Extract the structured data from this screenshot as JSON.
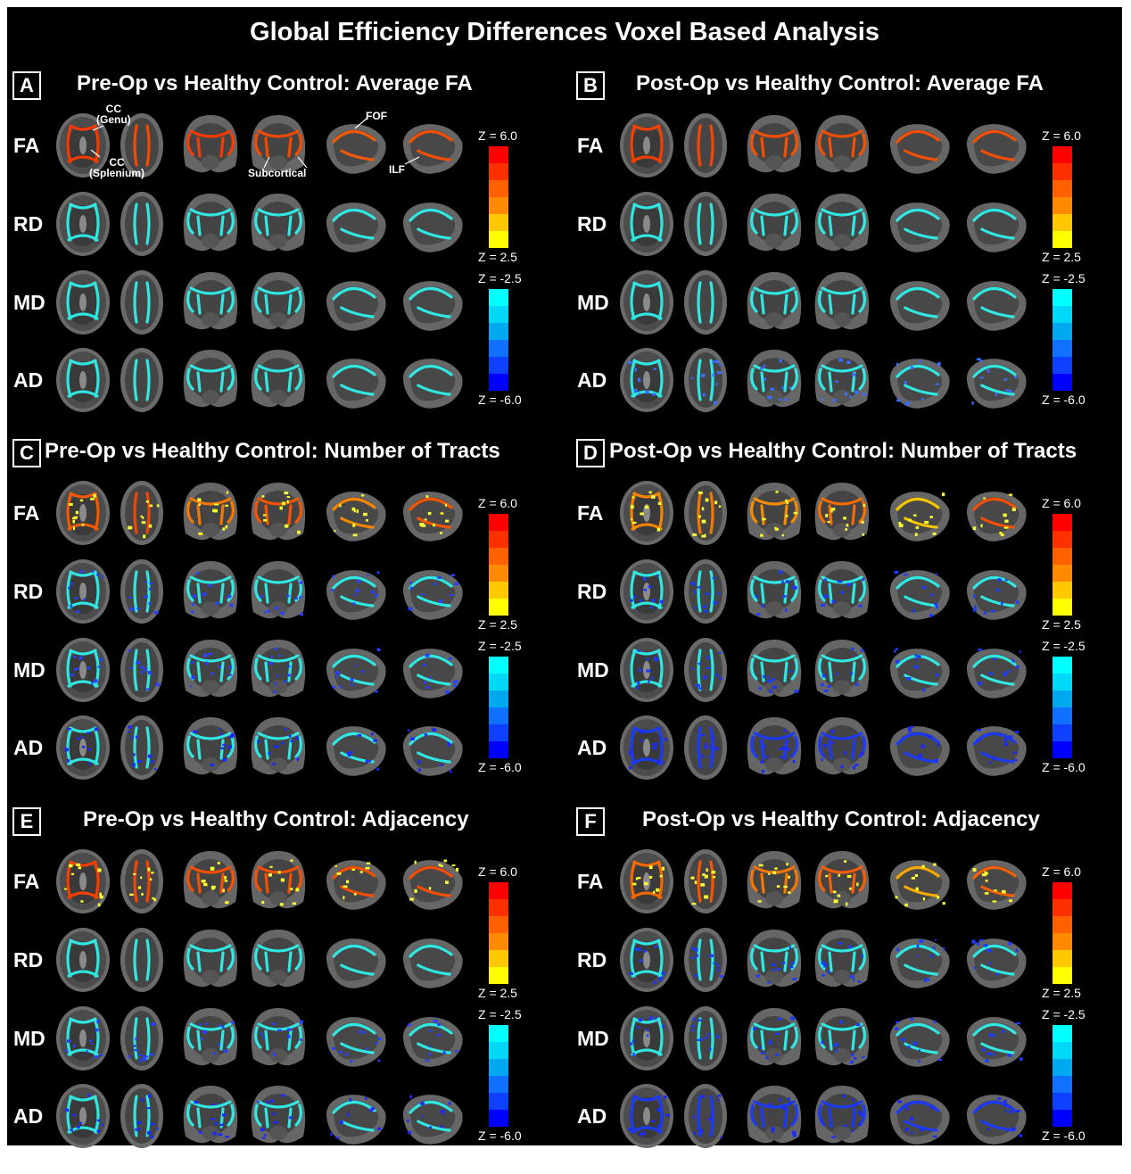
{
  "figure_title": "Global Efficiency Differences Voxel Based Analysis",
  "panels": [
    {
      "letter": "A",
      "title": "Pre-Op vs Healthy Control: Average FA",
      "fa_colors": [
        "#ff3b00",
        "#ff4a00",
        "#ff3b00",
        "#ff4a00",
        "#ff5a00",
        "#ff5000"
      ],
      "blue_colors": [
        [
          "#2ff0ea",
          "#2ff0ea"
        ],
        [
          "#2ff0ea",
          "#2ff0ea"
        ],
        [
          "#2ff0ea",
          "#2ff0ea"
        ]
      ]
    },
    {
      "letter": "B",
      "title": "Post-Op vs Healthy Control: Average FA",
      "fa_colors": [
        "#ff4000",
        "#ff4500",
        "#ff5000",
        "#ff5000",
        "#ff5000",
        "#ff5000"
      ],
      "blue_colors": [
        [
          "#2ff0ea",
          "#2ff0ea"
        ],
        [
          "#2ff0ea",
          "#2ff0ea"
        ],
        [
          "#2ff0ea",
          "#3b6cff"
        ]
      ]
    },
    {
      "letter": "C",
      "title": "Pre-Op vs Healthy Control: Number of Tracts",
      "fa_colors": [
        "#ff5a00",
        "#ff4500",
        "#ff7a00",
        "#ff5500",
        "#ff8a00",
        "#ff5500"
      ],
      "blue_colors": [
        [
          "#2ff0ea",
          "#2840ff"
        ],
        [
          "#2ff0ea",
          "#2840ff"
        ],
        [
          "#2ff0ea",
          "#1a2aff"
        ]
      ]
    },
    {
      "letter": "D",
      "title": "Post-Op vs Healthy Control: Number of Tracts",
      "fa_colors": [
        "#ff8a00",
        "#ff7a00",
        "#ff9000",
        "#ff7000",
        "#ffcc00",
        "#ff5000"
      ],
      "blue_colors": [
        [
          "#2ff0ea",
          "#1a3aff"
        ],
        [
          "#2ff0ea",
          "#1a3aff"
        ],
        [
          "#1a3aff",
          "#1a2aff"
        ]
      ]
    },
    {
      "letter": "E",
      "title": "Pre-Op vs Healthy Control: Adjacency",
      "fa_colors": [
        "#ff4000",
        "#ff4500",
        "#ff5000",
        "#ff5000",
        "#ff5000",
        "#ff5000"
      ],
      "blue_colors": [
        [
          "#2ff0ea",
          "#2ff0ea"
        ],
        [
          "#2ff0ea",
          "#2840ff"
        ],
        [
          "#2ff0ea",
          "#1a2aff"
        ]
      ]
    },
    {
      "letter": "F",
      "title": "Post-Op vs Healthy Control: Adjacency",
      "fa_colors": [
        "#ff6a00",
        "#ff5500",
        "#ff7a00",
        "#ff6000",
        "#ffb000",
        "#ff6000"
      ],
      "blue_colors": [
        [
          "#2ff0ea",
          "#1a3aff"
        ],
        [
          "#2ff0ea",
          "#1a3aff"
        ],
        [
          "#1a3aff",
          "#1a2aff"
        ]
      ]
    }
  ],
  "row_labels": [
    "FA",
    "RD",
    "MD",
    "AD"
  ],
  "colorbar_positive": {
    "top_label": "Z = 6.0",
    "bottom_label": "Z = 2.5",
    "colors": [
      "#ff0000",
      "#ff3000",
      "#ff6000",
      "#ff8a00",
      "#ffc800",
      "#ffff00"
    ]
  },
  "colorbar_negative": {
    "top_label": "Z = -2.5",
    "bottom_label": "Z = -6.0",
    "colors": [
      "#00ffff",
      "#00d8f8",
      "#00a8f0",
      "#1070ff",
      "#1040ff",
      "#0000ff"
    ]
  },
  "annotations": {
    "cc_genu": "CC\n(Genu)",
    "cc_splenium": "CC\n(Splenium)",
    "subcortical": "Subcortical",
    "fof": "FOF",
    "ilf": "ILF"
  }
}
